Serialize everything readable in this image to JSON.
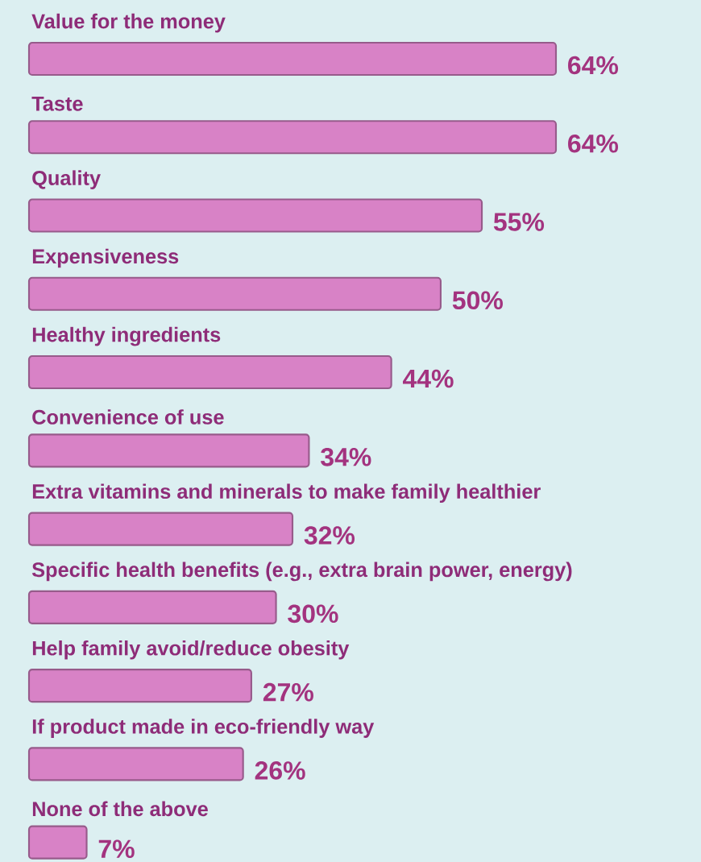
{
  "chart_data": {
    "type": "bar",
    "orientation": "horizontal",
    "color": "#d882c6",
    "categories": [
      "Value for the money",
      "Taste",
      "Quality",
      "Expensiveness",
      "Healthy ingredients",
      "Convenience of use",
      "Extra vitamins and minerals to make family healthier",
      "Specific health benefits (e.g., extra brain power, energy)",
      "Help family avoid/reduce obesity",
      "If product made in eco-friendly way",
      "None of the above"
    ],
    "values": [
      64,
      64,
      55,
      50,
      44,
      34,
      32,
      30,
      27,
      26,
      7
    ],
    "value_labels": [
      "64%",
      "64%",
      "55%",
      "50%",
      "44%",
      "34%",
      "32%",
      "30%",
      "27%",
      "26%",
      "7%"
    ]
  }
}
